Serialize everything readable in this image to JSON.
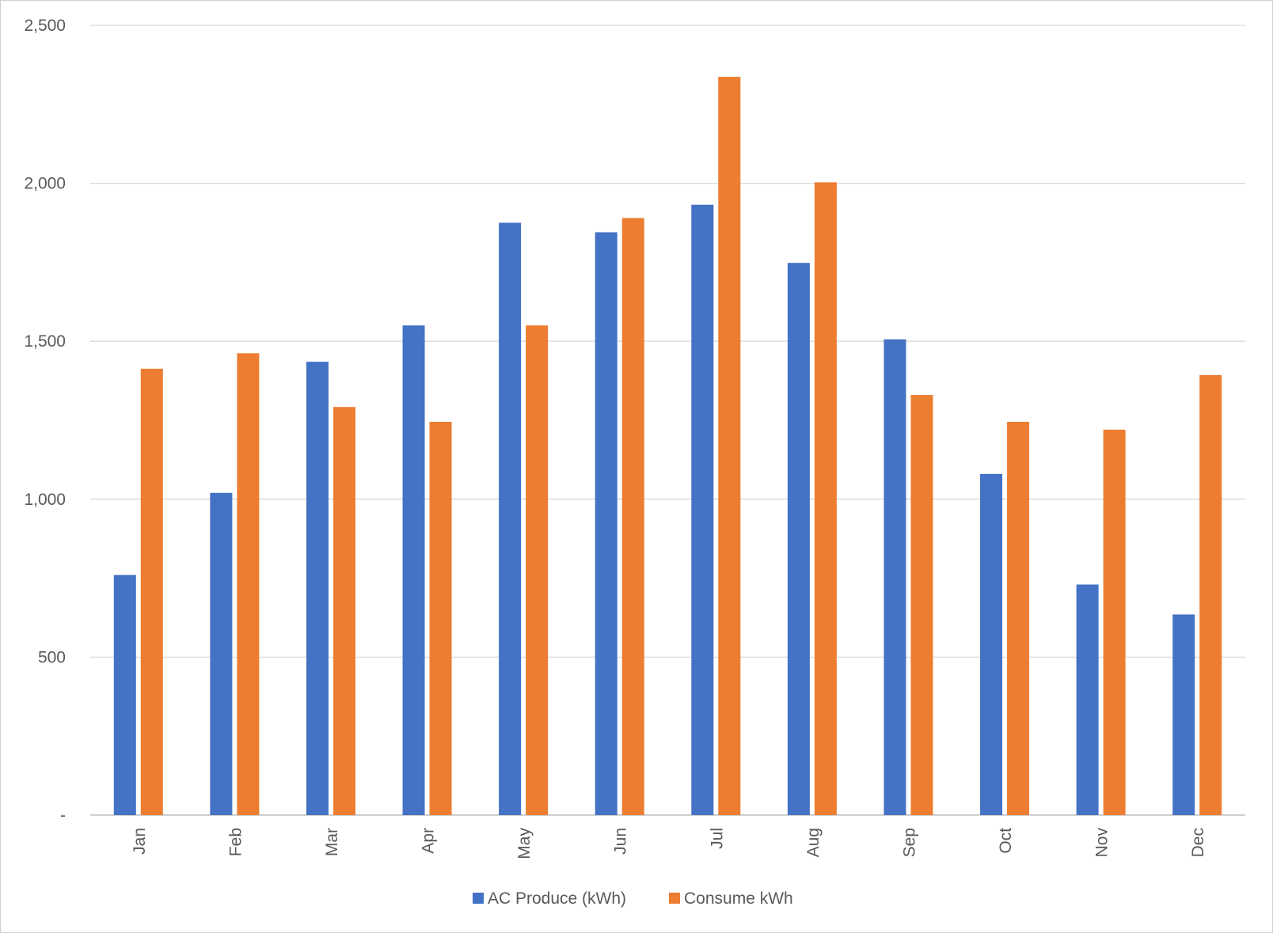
{
  "chart_data": {
    "type": "bar",
    "title": "",
    "xlabel": "",
    "ylabel": "",
    "categories": [
      "Jan",
      "Feb",
      "Mar",
      "Apr",
      "May",
      "Jun",
      "Jul",
      "Aug",
      "Sep",
      "Oct",
      "Nov",
      "Dec"
    ],
    "series": [
      {
        "name": "AC Produce (kWh)",
        "color": "#4472C4",
        "values": [
          760,
          1020,
          1435,
          1550,
          1875,
          1845,
          1932,
          1748,
          1506,
          1080,
          730,
          635
        ]
      },
      {
        "name": "Consume kWh",
        "color": "#ED7D31",
        "values": [
          1413,
          1462,
          1292,
          1245,
          1550,
          1890,
          2337,
          2003,
          1330,
          1245,
          1220,
          1393
        ]
      }
    ],
    "ylim": [
      0,
      2500
    ],
    "yticks": [
      {
        "value": 0,
        "label": "-"
      },
      {
        "value": 500,
        "label": "500"
      },
      {
        "value": 1000,
        "label": "1,000"
      },
      {
        "value": 1500,
        "label": "1,500"
      },
      {
        "value": 2000,
        "label": "2,000"
      },
      {
        "value": 2500,
        "label": "2,500"
      }
    ],
    "grid": true,
    "gridline_color": "#d9d9d9",
    "axis_color": "#bfbfbf",
    "legend_position": "bottom-center",
    "x_tick_rotation": "vertical"
  }
}
